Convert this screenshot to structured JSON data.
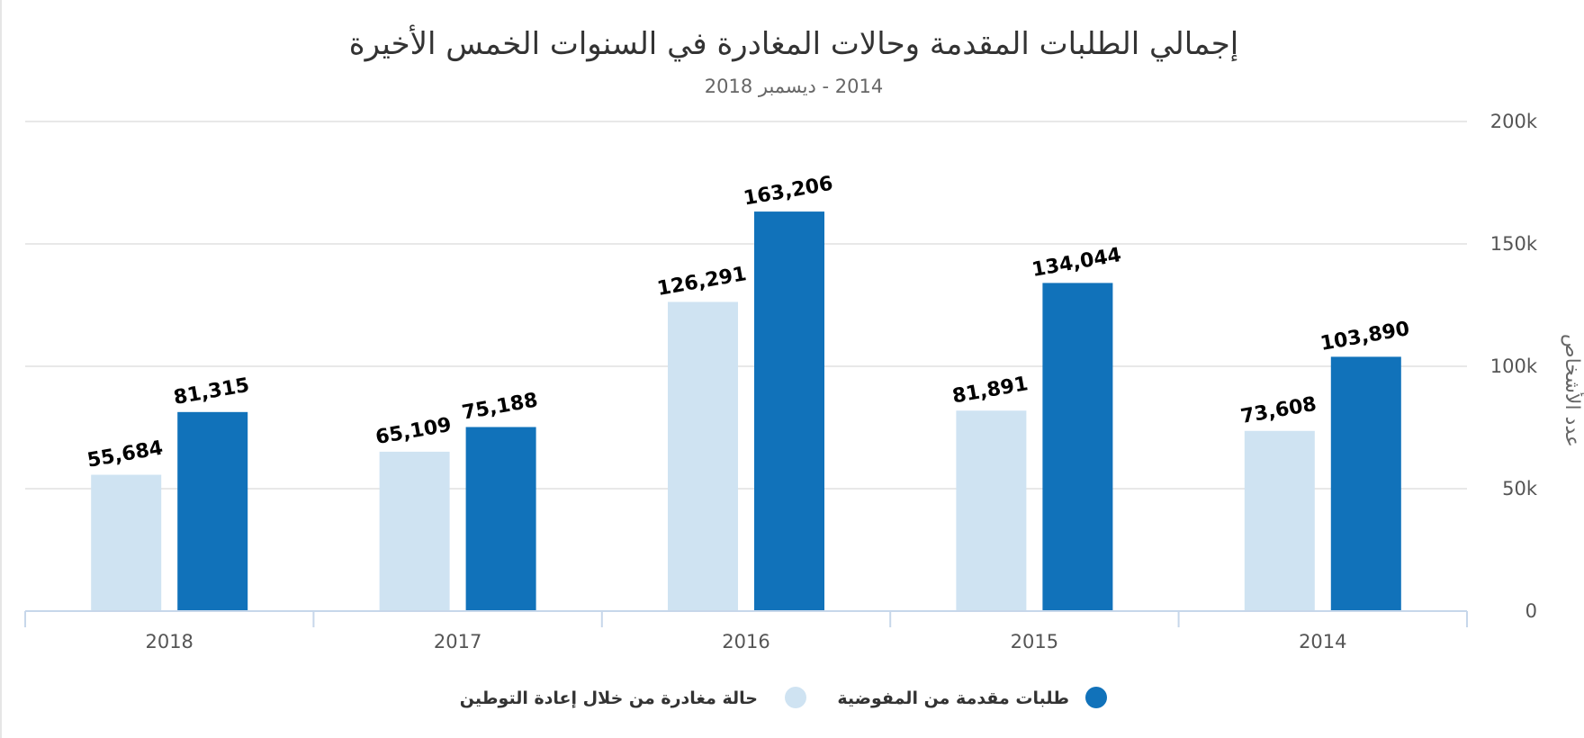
{
  "chart_data": {
    "type": "bar",
    "title": "إجمالي الطلبات المقدمة وحالات المغادرة في السنوات الخمس الأخيرة",
    "subtitle": "2014 - ديسمبر 2018",
    "ylabel": "عدد الأشخاص",
    "xlabel": "",
    "categories": [
      "2018",
      "2017",
      "2016",
      "2015",
      "2014"
    ],
    "series": [
      {
        "name": "حالة مغادرة من خلال إعادة التوطين",
        "color": "#cfe3f2",
        "values": [
          55684,
          65109,
          126291,
          81891,
          73608
        ],
        "labels": [
          "55,684",
          "65,109",
          "126,291",
          "81,891",
          "73,608"
        ]
      },
      {
        "name": "طلبات مقدمة من المفوضية",
        "color": "#1172ba",
        "values": [
          81315,
          75188,
          163206,
          134044,
          103890
        ],
        "labels": [
          "81,315",
          "75,188",
          "163,206",
          "134,044",
          "103,890"
        ]
      }
    ],
    "ylim": [
      0,
      200000
    ],
    "yticks": [
      {
        "value": 0,
        "label": "0"
      },
      {
        "value": 50000,
        "label": "50k"
      },
      {
        "value": 100000,
        "label": "100k"
      },
      {
        "value": 150000,
        "label": "150k"
      },
      {
        "value": 200000,
        "label": "200k"
      }
    ],
    "yaxis_side": "right",
    "grid": true,
    "legend_position": "bottom-center",
    "gridline_color": "#e0e0e0",
    "axis_color": "#c7d7ea"
  }
}
